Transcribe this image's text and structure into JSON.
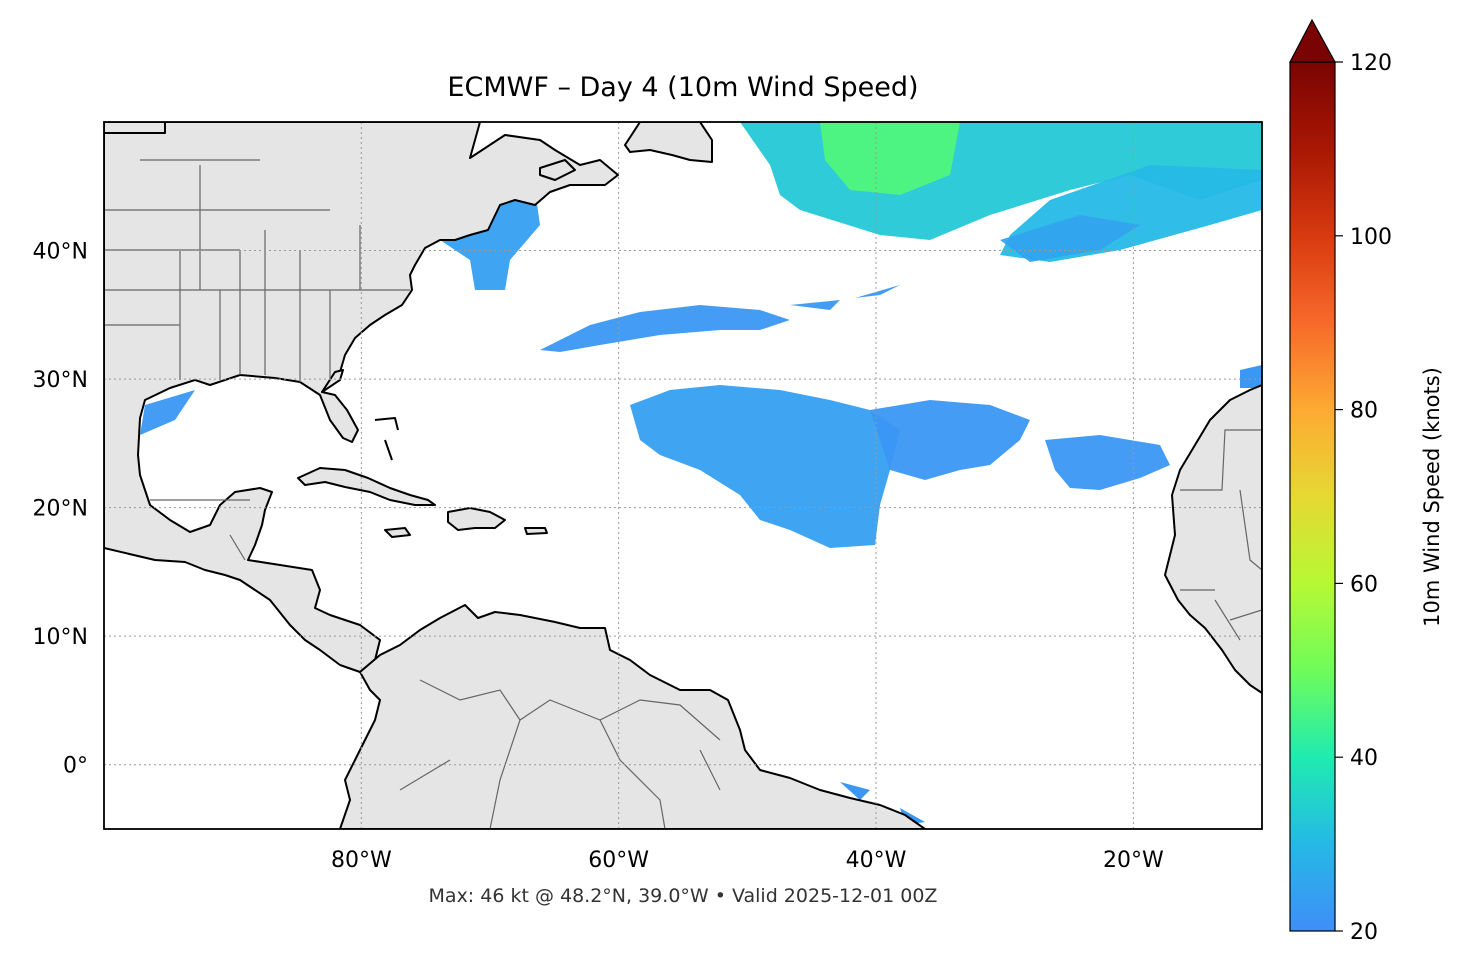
{
  "title": "ECMWF – Day 4 (10m Wind Speed)",
  "footnote": "Max: 46 kt @ 48.2°N, 39.0°W • Valid 2025-12-01 00Z",
  "map": {
    "lon_range": [
      -100,
      -10
    ],
    "lat_range": [
      -5,
      50
    ],
    "lon_ticks": [
      {
        "value": -80,
        "label": "80°W"
      },
      {
        "value": -60,
        "label": "60°W"
      },
      {
        "value": -40,
        "label": "40°W"
      },
      {
        "value": -20,
        "label": "20°W"
      }
    ],
    "lat_ticks": [
      {
        "value": 40,
        "label": "40°N"
      },
      {
        "value": 30,
        "label": "30°N"
      },
      {
        "value": 20,
        "label": "20°N"
      },
      {
        "value": 10,
        "label": "10°N"
      },
      {
        "value": 0,
        "label": "0°"
      }
    ],
    "gridlines": true,
    "land_color": "#e5e5e5"
  },
  "colorbar": {
    "label": "10m Wind Speed (knots)",
    "min": 20,
    "max": 120,
    "extend": "max",
    "ticks": [
      {
        "value": 20,
        "label": "20"
      },
      {
        "value": 40,
        "label": "40"
      },
      {
        "value": 60,
        "label": "60"
      },
      {
        "value": 80,
        "label": "80"
      },
      {
        "value": 100,
        "label": "100"
      },
      {
        "value": 120,
        "label": "120"
      }
    ],
    "colormap": "turbo",
    "stops": [
      "#3f8ef8",
      "#25b9e6",
      "#20ebb0",
      "#6ffc5a",
      "#b7f834",
      "#e6d833",
      "#fdaa32",
      "#f7692a",
      "#d83a10",
      "#a81703",
      "#7a0403"
    ]
  },
  "chart_data": {
    "type": "heatmap",
    "title": "ECMWF – Day 4 (10m Wind Speed)",
    "variable": "10m Wind Speed (knots)",
    "max": {
      "value": 46,
      "lat": 48.2,
      "lon": -39.0,
      "label": "Max: 46 kt @ 48.2°N, 39.0°W"
    },
    "valid": "2025-12-01 00Z",
    "wind_regions": [
      {
        "lon": -50,
        "lat": 47,
        "speed_kt": 33
      },
      {
        "lon": -38,
        "lat": 48.2,
        "speed_kt": 46
      },
      {
        "lon": -25,
        "lat": 45,
        "speed_kt": 30
      },
      {
        "lon": -30,
        "lat": 43,
        "speed_kt": 25
      },
      {
        "lon": -55,
        "lat": 34.5,
        "speed_kt": 22
      },
      {
        "lon": -45,
        "lat": 24,
        "speed_kt": 24
      },
      {
        "lon": -32,
        "lat": 25,
        "speed_kt": 22
      },
      {
        "lon": -20,
        "lat": 23.5,
        "speed_kt": 22
      },
      {
        "lon": -68,
        "lat": 42,
        "speed_kt": 24
      },
      {
        "lon": -95,
        "lat": 28,
        "speed_kt": 22
      }
    ]
  }
}
